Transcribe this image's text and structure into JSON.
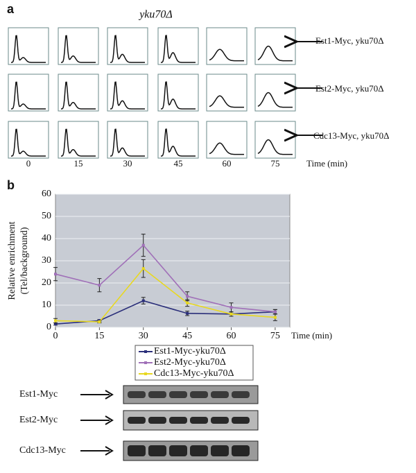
{
  "panel_a": {
    "label": "a",
    "title": "yku70Δ",
    "times": [
      "0",
      "15",
      "30",
      "45",
      "60",
      "75"
    ],
    "time_axis_label": "Time (min)",
    "rows": [
      "Est1-Myc, yku70Δ",
      "Est2-Myc, yku70Δ",
      "Cdc13-Myc, yku70Δ"
    ]
  },
  "chart_data": {
    "type": "line",
    "panel_label": "b",
    "y_axis_label": [
      "Relative enrichment",
      "(Tel/background)"
    ],
    "x_axis_label": "Time (min)",
    "x": [
      0,
      15,
      30,
      45,
      60,
      75
    ],
    "xlim": [
      0,
      80
    ],
    "xticks": [
      0,
      15,
      30,
      45,
      60,
      75
    ],
    "ylim": [
      0,
      60
    ],
    "yticks": [
      0,
      10,
      20,
      30,
      40,
      50,
      60
    ],
    "grid": true,
    "series": [
      {
        "name": "Est1-Myc-yku70Δ",
        "color": "#2b2f7a",
        "values": [
          1.5,
          3,
          12,
          6.3,
          6,
          7
        ],
        "errors": [
          0.5,
          0.5,
          1.5,
          1,
          1,
          1
        ]
      },
      {
        "name": "Est2-Myc-yku70Δ",
        "color": "#a070b8",
        "values": [
          24,
          19,
          37,
          14,
          9,
          7
        ],
        "errors": [
          3,
          3,
          5,
          2,
          2,
          1
        ]
      },
      {
        "name": "Cdc13-Myc-yku70Δ",
        "color": "#e8d820",
        "values": [
          3,
          2.5,
          26.5,
          11,
          6,
          4.5
        ],
        "errors": [
          1,
          0.5,
          4,
          1.5,
          1,
          1.5
        ]
      }
    ]
  },
  "blots": {
    "rows": [
      "Est1-Myc",
      "Est2-Myc",
      "Cdc13-Myc"
    ]
  }
}
